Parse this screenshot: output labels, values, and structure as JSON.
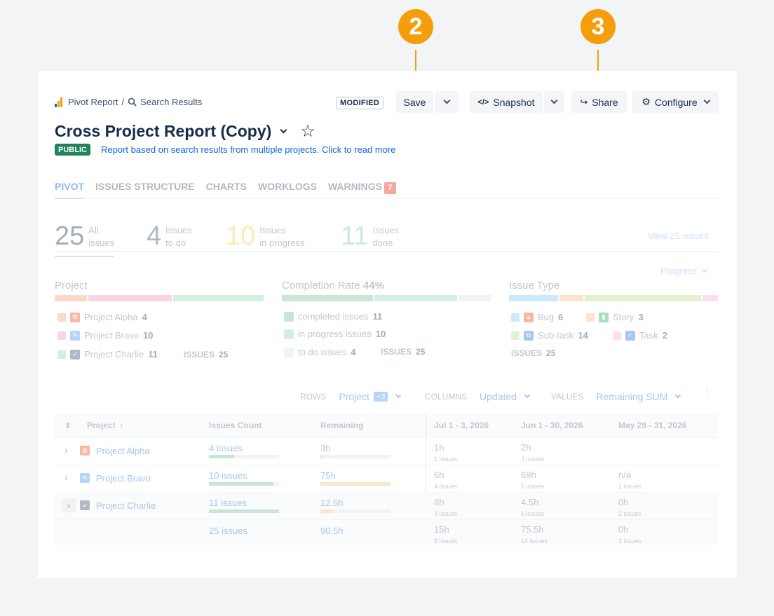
{
  "callouts": [
    "2",
    "3"
  ],
  "breadcrumb": {
    "root": "Pivot Report",
    "sep": "/",
    "current": "Search Results"
  },
  "toolbar": {
    "modified": "MODIFIED",
    "save": "Save",
    "snapshot": "Snapshot",
    "share": "Share",
    "configure": "Configure"
  },
  "report": {
    "title": "Cross Project Report (Copy)",
    "visibility": "PUBLIC",
    "description": "Report based on search results from multiple projects. Click to read more"
  },
  "tabs": [
    {
      "label": "PIVOT"
    },
    {
      "label": "ISSUES STRUCTURE"
    },
    {
      "label": "CHARTS"
    },
    {
      "label": "WORKLOGS"
    },
    {
      "label": "WARNINGS",
      "badge": "7"
    }
  ],
  "stats": [
    {
      "num": "25",
      "l1": "All",
      "l2": "issues",
      "color": "#c1c7d0"
    },
    {
      "num": "4",
      "l1": "Issues",
      "l2": "to do",
      "color": "#c1c7d0"
    },
    {
      "num": "10",
      "l1": "Issues",
      "l2": "in progress",
      "color": "#fbecb4"
    },
    {
      "num": "11",
      "l1": "Issues",
      "l2": "done",
      "color": "#c9ebdd"
    }
  ],
  "view_issues": "View 25 issues",
  "progress_select": "Progress",
  "sections": {
    "project": {
      "title": "Project",
      "items": [
        {
          "name": "Project Alpha",
          "count": "4",
          "color": "#fcd9c6"
        },
        {
          "name": "Project Bravo",
          "count": "10",
          "color": "#f9d4e4"
        },
        {
          "name": "Project Charlie",
          "count": "11",
          "color": "#d2f0df"
        }
      ],
      "total_label": "ISSUES",
      "total": "25"
    },
    "completion": {
      "title": "Completion Rate",
      "rate": "44%",
      "items": [
        {
          "name": "completed issues",
          "count": "11",
          "color": "#c9e5d6"
        },
        {
          "name": "in progress issues",
          "count": "10",
          "color": "#d3efe5"
        },
        {
          "name": "to do issues",
          "count": "4",
          "color": "#f1f2f4"
        }
      ],
      "total_label": "ISSUES",
      "total": "25"
    },
    "type": {
      "title": "Issue Type",
      "items": [
        {
          "name": "Bug",
          "count": "6",
          "color": "#cbeaf7"
        },
        {
          "name": "Story",
          "count": "3",
          "color": "#fde2cc"
        },
        {
          "name": "Sub-task",
          "count": "14",
          "color": "#e4f1d0"
        },
        {
          "name": "Task",
          "count": "2",
          "color": "#fbdfee"
        }
      ],
      "total_label": "ISSUES",
      "total": "25"
    }
  },
  "controls": {
    "rows_label": "ROWS",
    "rows_value": "Project",
    "rows_badge": "+3",
    "columns_label": "COLUMNS",
    "columns_value": "Updated",
    "values_label": "VALUES",
    "values_value": "Remaining SUM"
  },
  "table": {
    "headers": [
      "Project",
      "Issues Count",
      "Remaining",
      "Jul 1 - 3, 2026",
      "Jun 1 - 30, 2026",
      "May 29 - 31, 2026"
    ],
    "rows": [
      {
        "name": "Project Alpha",
        "count": "4 issues",
        "count_frac": 0.36,
        "remaining": "3h",
        "rem_frac": 0.04,
        "c1": "1h",
        "c1s": "1 issues",
        "c2": "2h",
        "c2s": "3 issues",
        "c3": "",
        "c3s": ""
      },
      {
        "name": "Project Bravo",
        "count": "10 issues",
        "count_frac": 0.92,
        "remaining": "75h",
        "rem_frac": 1.0,
        "c1": "6h",
        "c1s": "4 issues",
        "c2": "69h",
        "c2s": "5 issues",
        "c3": "n/a",
        "c3s": "1 issues"
      },
      {
        "name": "Project Charlie",
        "count": "11 issues",
        "count_frac": 1.0,
        "remaining": "12.5h",
        "rem_frac": 0.17,
        "c1": "8h",
        "c1s": "3 issues",
        "c2": "4.5h",
        "c2s": "6 issues",
        "c3": "0h",
        "c3s": "2 issues"
      }
    ],
    "total": {
      "count": "25 issues",
      "remaining": "90.5h",
      "c1": "15h",
      "c1s": "8 issues",
      "c2": "75.5h",
      "c2s": "14 issues",
      "c3": "0h",
      "c3s": "3 issues"
    }
  }
}
